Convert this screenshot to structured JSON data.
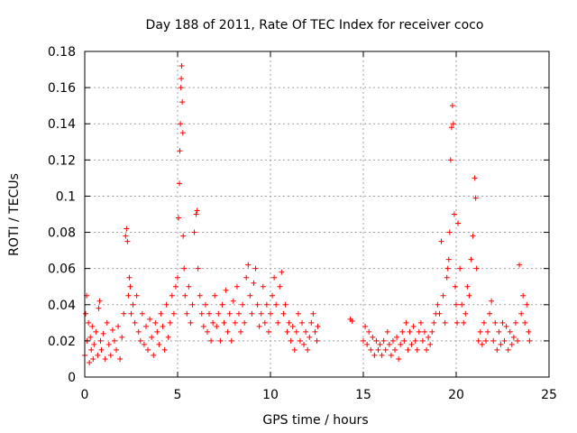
{
  "chart_data": {
    "type": "scatter",
    "title": "Day 188 of 2011, Rate Of TEC Index for receiver coco",
    "xlabel": "GPS time / hours",
    "ylabel": "ROTI / TECUs",
    "xlim": [
      0,
      25
    ],
    "ylim": [
      0,
      0.18
    ],
    "xticks": [
      0,
      5,
      10,
      15,
      20,
      25
    ],
    "yticks": [
      0,
      0.02,
      0.04,
      0.06,
      0.08,
      0.1,
      0.12,
      0.14,
      0.16,
      0.18
    ],
    "xtick_labels": [
      "0",
      "5",
      "10",
      "15",
      "20",
      "25"
    ],
    "ytick_labels": [
      "0",
      "0.02",
      "0.04",
      "0.06",
      "0.08",
      "0.1",
      "0.12",
      "0.14",
      "0.16",
      "0.18"
    ],
    "grid": true,
    "marker": "+",
    "color": "#ff0000",
    "points": [
      [
        0.0,
        0.012
      ],
      [
        0.05,
        0.035
      ],
      [
        0.1,
        0.045
      ],
      [
        0.12,
        0.02
      ],
      [
        0.2,
        0.03
      ],
      [
        0.25,
        0.008
      ],
      [
        0.3,
        0.022
      ],
      [
        0.35,
        0.015
      ],
      [
        0.4,
        0.028
      ],
      [
        0.45,
        0.01
      ],
      [
        0.5,
        0.018
      ],
      [
        0.6,
        0.025
      ],
      [
        0.7,
        0.012
      ],
      [
        0.75,
        0.038
      ],
      [
        0.8,
        0.042
      ],
      [
        0.85,
        0.02
      ],
      [
        0.9,
        0.015
      ],
      [
        1.0,
        0.024
      ],
      [
        1.1,
        0.01
      ],
      [
        1.2,
        0.03
      ],
      [
        1.3,
        0.018
      ],
      [
        1.4,
        0.012
      ],
      [
        1.5,
        0.026
      ],
      [
        1.6,
        0.02
      ],
      [
        1.7,
        0.015
      ],
      [
        1.8,
        0.028
      ],
      [
        1.9,
        0.01
      ],
      [
        2.0,
        0.022
      ],
      [
        2.1,
        0.035
      ],
      [
        2.2,
        0.078
      ],
      [
        2.25,
        0.082
      ],
      [
        2.3,
        0.075
      ],
      [
        2.35,
        0.045
      ],
      [
        2.4,
        0.055
      ],
      [
        2.45,
        0.05
      ],
      [
        2.5,
        0.035
      ],
      [
        2.6,
        0.04
      ],
      [
        2.7,
        0.03
      ],
      [
        2.8,
        0.045
      ],
      [
        2.9,
        0.025
      ],
      [
        3.0,
        0.02
      ],
      [
        3.1,
        0.035
      ],
      [
        3.2,
        0.018
      ],
      [
        3.3,
        0.028
      ],
      [
        3.4,
        0.015
      ],
      [
        3.5,
        0.032
      ],
      [
        3.6,
        0.022
      ],
      [
        3.7,
        0.012
      ],
      [
        3.8,
        0.03
      ],
      [
        3.9,
        0.025
      ],
      [
        4.0,
        0.018
      ],
      [
        4.1,
        0.035
      ],
      [
        4.2,
        0.028
      ],
      [
        4.3,
        0.015
      ],
      [
        4.4,
        0.04
      ],
      [
        4.5,
        0.022
      ],
      [
        4.6,
        0.03
      ],
      [
        4.7,
        0.045
      ],
      [
        4.8,
        0.035
      ],
      [
        4.9,
        0.05
      ],
      [
        5.0,
        0.055
      ],
      [
        5.05,
        0.088
      ],
      [
        5.1,
        0.107
      ],
      [
        5.12,
        0.125
      ],
      [
        5.15,
        0.14
      ],
      [
        5.18,
        0.16
      ],
      [
        5.2,
        0.165
      ],
      [
        5.22,
        0.172
      ],
      [
        5.25,
        0.152
      ],
      [
        5.28,
        0.135
      ],
      [
        5.3,
        0.078
      ],
      [
        5.35,
        0.06
      ],
      [
        5.4,
        0.045
      ],
      [
        5.5,
        0.035
      ],
      [
        5.6,
        0.05
      ],
      [
        5.7,
        0.03
      ],
      [
        5.8,
        0.04
      ],
      [
        5.9,
        0.08
      ],
      [
        6.0,
        0.09
      ],
      [
        6.05,
        0.092
      ],
      [
        6.1,
        0.06
      ],
      [
        6.2,
        0.045
      ],
      [
        6.3,
        0.035
      ],
      [
        6.4,
        0.028
      ],
      [
        6.5,
        0.04
      ],
      [
        6.6,
        0.025
      ],
      [
        6.7,
        0.035
      ],
      [
        6.8,
        0.02
      ],
      [
        6.9,
        0.03
      ],
      [
        7.0,
        0.045
      ],
      [
        7.1,
        0.028
      ],
      [
        7.2,
        0.035
      ],
      [
        7.3,
        0.02
      ],
      [
        7.4,
        0.04
      ],
      [
        7.5,
        0.03
      ],
      [
        7.6,
        0.048
      ],
      [
        7.7,
        0.025
      ],
      [
        7.8,
        0.035
      ],
      [
        7.9,
        0.02
      ],
      [
        8.0,
        0.042
      ],
      [
        8.1,
        0.03
      ],
      [
        8.2,
        0.05
      ],
      [
        8.3,
        0.035
      ],
      [
        8.4,
        0.025
      ],
      [
        8.5,
        0.04
      ],
      [
        8.6,
        0.03
      ],
      [
        8.7,
        0.055
      ],
      [
        8.8,
        0.062
      ],
      [
        8.9,
        0.045
      ],
      [
        9.0,
        0.035
      ],
      [
        9.1,
        0.052
      ],
      [
        9.2,
        0.06
      ],
      [
        9.3,
        0.04
      ],
      [
        9.4,
        0.028
      ],
      [
        9.5,
        0.035
      ],
      [
        9.6,
        0.05
      ],
      [
        9.7,
        0.03
      ],
      [
        9.8,
        0.04
      ],
      [
        9.9,
        0.025
      ],
      [
        10.0,
        0.035
      ],
      [
        10.1,
        0.045
      ],
      [
        10.2,
        0.055
      ],
      [
        10.3,
        0.04
      ],
      [
        10.4,
        0.03
      ],
      [
        10.5,
        0.05
      ],
      [
        10.6,
        0.058
      ],
      [
        10.7,
        0.035
      ],
      [
        10.8,
        0.04
      ],
      [
        10.9,
        0.025
      ],
      [
        11.0,
        0.03
      ],
      [
        11.1,
        0.02
      ],
      [
        11.2,
        0.028
      ],
      [
        11.3,
        0.015
      ],
      [
        11.4,
        0.025
      ],
      [
        11.5,
        0.035
      ],
      [
        11.6,
        0.02
      ],
      [
        11.7,
        0.03
      ],
      [
        11.8,
        0.018
      ],
      [
        11.9,
        0.025
      ],
      [
        12.0,
        0.015
      ],
      [
        12.1,
        0.022
      ],
      [
        12.2,
        0.03
      ],
      [
        12.3,
        0.035
      ],
      [
        12.4,
        0.025
      ],
      [
        12.5,
        0.02
      ],
      [
        12.55,
        0.028
      ],
      [
        14.3,
        0.032
      ],
      [
        14.4,
        0.031
      ],
      [
        15.0,
        0.02
      ],
      [
        15.1,
        0.028
      ],
      [
        15.2,
        0.018
      ],
      [
        15.3,
        0.025
      ],
      [
        15.4,
        0.015
      ],
      [
        15.5,
        0.022
      ],
      [
        15.6,
        0.012
      ],
      [
        15.7,
        0.02
      ],
      [
        15.8,
        0.015
      ],
      [
        15.9,
        0.018
      ],
      [
        16.0,
        0.012
      ],
      [
        16.1,
        0.02
      ],
      [
        16.2,
        0.015
      ],
      [
        16.3,
        0.025
      ],
      [
        16.4,
        0.018
      ],
      [
        16.5,
        0.012
      ],
      [
        16.6,
        0.02
      ],
      [
        16.7,
        0.015
      ],
      [
        16.8,
        0.022
      ],
      [
        16.9,
        0.01
      ],
      [
        17.0,
        0.018
      ],
      [
        17.1,
        0.025
      ],
      [
        17.2,
        0.02
      ],
      [
        17.3,
        0.03
      ],
      [
        17.4,
        0.015
      ],
      [
        17.5,
        0.025
      ],
      [
        17.6,
        0.018
      ],
      [
        17.7,
        0.028
      ],
      [
        17.8,
        0.02
      ],
      [
        17.9,
        0.015
      ],
      [
        18.0,
        0.025
      ],
      [
        18.1,
        0.03
      ],
      [
        18.2,
        0.02
      ],
      [
        18.3,
        0.025
      ],
      [
        18.4,
        0.015
      ],
      [
        18.5,
        0.022
      ],
      [
        18.6,
        0.018
      ],
      [
        18.7,
        0.025
      ],
      [
        18.8,
        0.03
      ],
      [
        18.9,
        0.035
      ],
      [
        19.0,
        0.04
      ],
      [
        19.1,
        0.035
      ],
      [
        19.2,
        0.075
      ],
      [
        19.3,
        0.045
      ],
      [
        19.4,
        0.03
      ],
      [
        19.5,
        0.055
      ],
      [
        19.55,
        0.06
      ],
      [
        19.6,
        0.065
      ],
      [
        19.65,
        0.08
      ],
      [
        19.7,
        0.12
      ],
      [
        19.75,
        0.138
      ],
      [
        19.8,
        0.15
      ],
      [
        19.85,
        0.14
      ],
      [
        19.9,
        0.09
      ],
      [
        19.95,
        0.05
      ],
      [
        20.0,
        0.04
      ],
      [
        20.05,
        0.03
      ],
      [
        20.1,
        0.085
      ],
      [
        20.2,
        0.06
      ],
      [
        20.3,
        0.04
      ],
      [
        20.4,
        0.03
      ],
      [
        20.5,
        0.035
      ],
      [
        20.6,
        0.05
      ],
      [
        20.7,
        0.045
      ],
      [
        20.8,
        0.065
      ],
      [
        20.9,
        0.078
      ],
      [
        21.0,
        0.11
      ],
      [
        21.05,
        0.099
      ],
      [
        21.1,
        0.06
      ],
      [
        21.2,
        0.02
      ],
      [
        21.3,
        0.025
      ],
      [
        21.4,
        0.018
      ],
      [
        21.5,
        0.03
      ],
      [
        21.6,
        0.02
      ],
      [
        21.7,
        0.025
      ],
      [
        21.8,
        0.035
      ],
      [
        21.9,
        0.042
      ],
      [
        22.0,
        0.02
      ],
      [
        22.1,
        0.03
      ],
      [
        22.2,
        0.015
      ],
      [
        22.3,
        0.025
      ],
      [
        22.4,
        0.018
      ],
      [
        22.5,
        0.03
      ],
      [
        22.6,
        0.02
      ],
      [
        22.7,
        0.028
      ],
      [
        22.8,
        0.015
      ],
      [
        22.9,
        0.025
      ],
      [
        23.0,
        0.018
      ],
      [
        23.1,
        0.022
      ],
      [
        23.2,
        0.03
      ],
      [
        23.3,
        0.02
      ],
      [
        23.4,
        0.062
      ],
      [
        23.5,
        0.035
      ],
      [
        23.6,
        0.045
      ],
      [
        23.7,
        0.03
      ],
      [
        23.8,
        0.04
      ],
      [
        23.9,
        0.025
      ],
      [
        23.95,
        0.02
      ]
    ]
  }
}
